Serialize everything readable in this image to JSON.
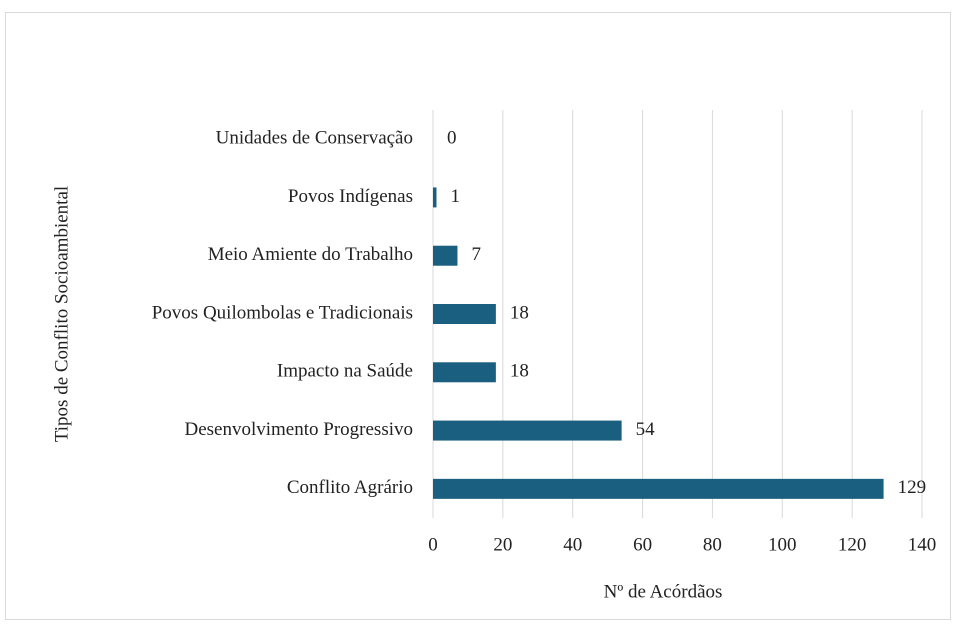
{
  "chart_data": {
    "type": "bar",
    "orientation": "horizontal",
    "categories": [
      "Unidades de Conservação",
      "Povos Indígenas",
      "Meio Amiente do Trabalho",
      "Povos Quilombolas e Tradicionais",
      "Impacto na Saúde",
      "Desenvolvimento Progressivo",
      "Conflito Agrário"
    ],
    "values": [
      0,
      1,
      7,
      18,
      18,
      54,
      129
    ],
    "color": "#1b5f80",
    "xlabel": "Nº de Acórdãos",
    "ylabel": "Tipos de Conflito Socioambiental",
    "xlim": [
      0,
      140
    ],
    "xticks": [
      0,
      20,
      40,
      60,
      80,
      100,
      120,
      140
    ],
    "grid": true
  }
}
